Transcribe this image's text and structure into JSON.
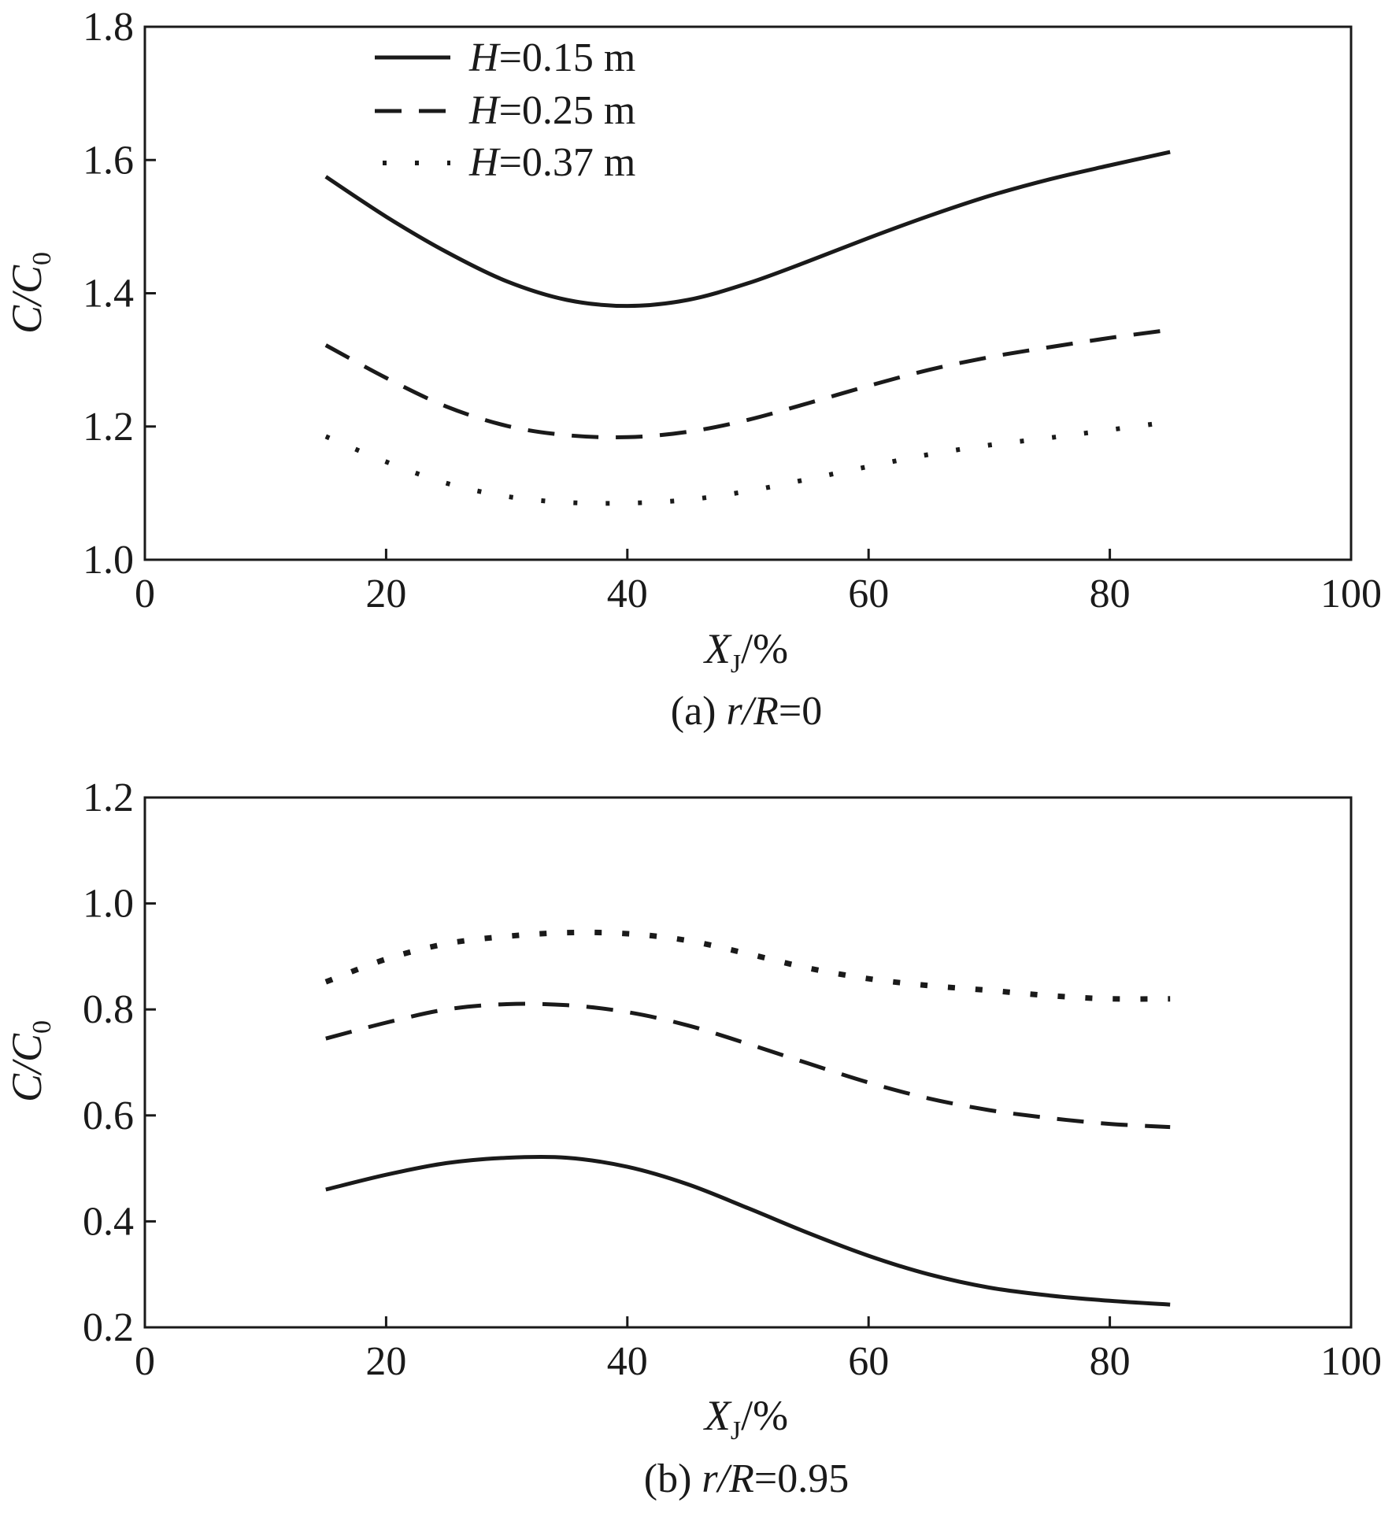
{
  "chart_data": [
    {
      "id": "a",
      "type": "line",
      "title": "",
      "caption_prefix": "(a) ",
      "caption_var": "r/R",
      "caption_value": "=0",
      "xlabel_main": "X",
      "xlabel_sub": "J",
      "xlabel_unit": "/%",
      "ylabel_main": "C/C",
      "ylabel_sub": "0",
      "xlim": [
        0,
        100
      ],
      "ylim": [
        1.0,
        1.8
      ],
      "xticks": [
        0,
        20,
        40,
        60,
        80,
        100
      ],
      "yticks": [
        1.0,
        1.2,
        1.4,
        1.6,
        1.8
      ],
      "ytick_decimals": 1,
      "legend": "top-left",
      "series": [
        {
          "name": "H=0.15 m",
          "h_var": "H",
          "h_value": "=0.15 m",
          "style": "solid",
          "x": [
            15,
            20,
            25,
            30,
            35,
            40,
            45,
            50,
            55,
            60,
            65,
            70,
            75,
            80,
            85
          ],
          "y": [
            1.575,
            1.515,
            1.462,
            1.418,
            1.39,
            1.381,
            1.39,
            1.415,
            1.448,
            1.483,
            1.516,
            1.546,
            1.571,
            1.592,
            1.612
          ]
        },
        {
          "name": "H=0.25 m",
          "h_var": "H",
          "h_value": "=0.25 m",
          "style": "dashed",
          "x": [
            15,
            20,
            25,
            30,
            35,
            40,
            45,
            50,
            55,
            60,
            65,
            70,
            75,
            80,
            85
          ],
          "y": [
            1.322,
            1.273,
            1.23,
            1.201,
            1.187,
            1.184,
            1.192,
            1.21,
            1.235,
            1.261,
            1.285,
            1.304,
            1.319,
            1.333,
            1.345
          ]
        },
        {
          "name": "H=0.37 m",
          "h_var": "H",
          "h_value": "=0.37 m",
          "style": "dotted",
          "x": [
            15,
            20,
            25,
            30,
            35,
            40,
            45,
            50,
            55,
            60,
            65,
            70,
            75,
            80,
            85
          ],
          "y": [
            1.185,
            1.147,
            1.115,
            1.095,
            1.086,
            1.085,
            1.09,
            1.103,
            1.121,
            1.14,
            1.158,
            1.172,
            1.183,
            1.195,
            1.207
          ]
        }
      ]
    },
    {
      "id": "b",
      "type": "line",
      "title": "",
      "caption_prefix": "(b) ",
      "caption_var": "r/R",
      "caption_value": "=0.95",
      "xlabel_main": "X",
      "xlabel_sub": "J",
      "xlabel_unit": "/%",
      "ylabel_main": "C/C",
      "ylabel_sub": "0",
      "xlim": [
        0,
        100
      ],
      "ylim": [
        0.2,
        1.2
      ],
      "xticks": [
        0,
        20,
        40,
        60,
        80,
        100
      ],
      "yticks": [
        0.2,
        0.4,
        0.6,
        0.8,
        1.0,
        1.2
      ],
      "ytick_decimals": 1,
      "legend": "none",
      "series": [
        {
          "name": "H=0.15 m",
          "style": "solid",
          "x": [
            15,
            20,
            25,
            30,
            35,
            40,
            45,
            50,
            55,
            60,
            65,
            70,
            75,
            80,
            85
          ],
          "y": [
            0.46,
            0.488,
            0.51,
            0.52,
            0.52,
            0.503,
            0.47,
            0.425,
            0.378,
            0.335,
            0.3,
            0.275,
            0.26,
            0.25,
            0.243
          ]
        },
        {
          "name": "H=0.25 m",
          "style": "dashed",
          "x": [
            15,
            20,
            25,
            30,
            35,
            40,
            45,
            50,
            55,
            60,
            65,
            70,
            75,
            80,
            85
          ],
          "y": [
            0.745,
            0.775,
            0.8,
            0.81,
            0.808,
            0.795,
            0.77,
            0.735,
            0.698,
            0.662,
            0.632,
            0.61,
            0.595,
            0.584,
            0.578
          ]
        },
        {
          "name": "H=0.37 m",
          "style": "dotted",
          "x": [
            15,
            20,
            25,
            30,
            35,
            40,
            45,
            50,
            55,
            60,
            65,
            70,
            75,
            80,
            85
          ],
          "y": [
            0.852,
            0.895,
            0.924,
            0.938,
            0.945,
            0.943,
            0.93,
            0.905,
            0.878,
            0.858,
            0.845,
            0.836,
            0.826,
            0.82,
            0.82
          ]
        }
      ]
    }
  ]
}
